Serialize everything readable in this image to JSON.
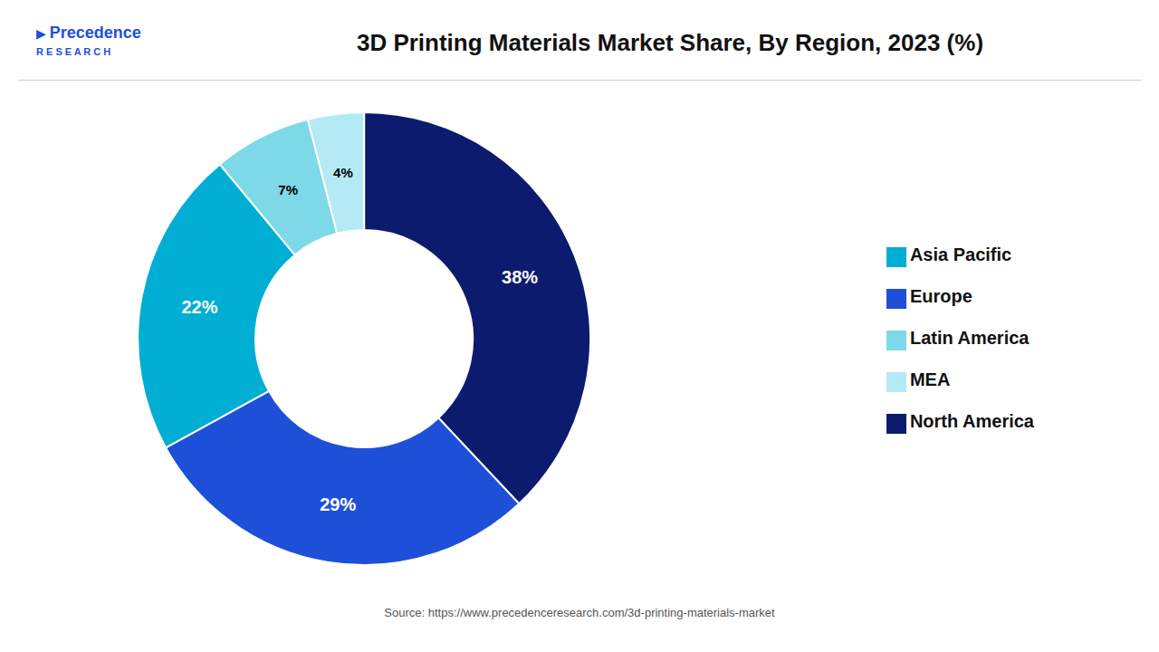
{
  "chart_data": {
    "type": "pie",
    "title": "3D Printing Materials Market Share, By Region, 2023 (%)",
    "categories": [
      "North America",
      "Europe",
      "Asia Pacific",
      "Latin America",
      "MEA"
    ],
    "values": [
      38,
      29,
      22,
      7,
      4
    ],
    "value_labels": [
      "38%",
      "29%",
      "22%",
      "7%",
      "4%"
    ],
    "colors": [
      "#0d1b6e",
      "#1e4fd8",
      "#00aed4",
      "#7dd9e8",
      "#b3eaf5"
    ],
    "data_labels": true,
    "legend": "right",
    "annotations": [
      "Source: https://www.precedenceresearch.com/3d-printing-materials-market",
      "▶",
      "Precedence",
      "R E S E A R C H"
    ]
  }
}
